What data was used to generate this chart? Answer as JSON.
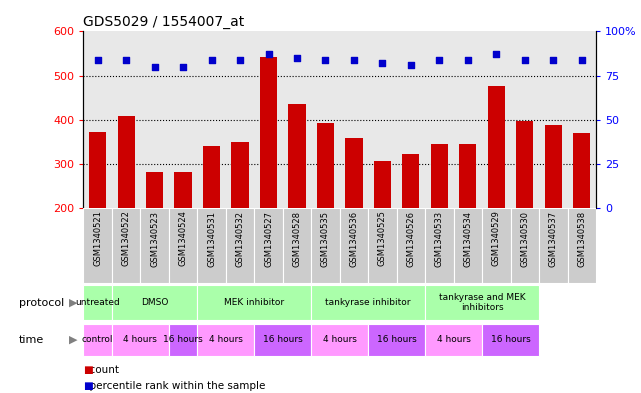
{
  "title": "GDS5029 / 1554007_at",
  "samples": [
    "GSM1340521",
    "GSM1340522",
    "GSM1340523",
    "GSM1340524",
    "GSM1340531",
    "GSM1340532",
    "GSM1340527",
    "GSM1340528",
    "GSM1340535",
    "GSM1340536",
    "GSM1340525",
    "GSM1340526",
    "GSM1340533",
    "GSM1340534",
    "GSM1340529",
    "GSM1340530",
    "GSM1340537",
    "GSM1340538"
  ],
  "counts": [
    372,
    408,
    283,
    283,
    340,
    350,
    543,
    435,
    393,
    358,
    308,
    323,
    345,
    345,
    477,
    397,
    388,
    370
  ],
  "percentile_ranks": [
    84,
    84,
    80,
    80,
    84,
    84,
    87,
    85,
    84,
    84,
    82,
    81,
    84,
    84,
    87,
    84,
    84,
    84
  ],
  "bar_color": "#cc0000",
  "dot_color": "#0000cc",
  "ylim_left": [
    200,
    600
  ],
  "ylim_right": [
    0,
    100
  ],
  "yticks_left": [
    200,
    300,
    400,
    500,
    600
  ],
  "yticks_right": [
    0,
    25,
    50,
    75,
    100
  ],
  "yticklabels_right": [
    "0",
    "25",
    "50",
    "75",
    "100%"
  ],
  "grid_values": [
    300,
    400,
    500
  ],
  "protocol_groups": [
    {
      "label": "untreated",
      "start": 0,
      "end": 1
    },
    {
      "label": "DMSO",
      "start": 1,
      "end": 4
    },
    {
      "label": "MEK inhibitor",
      "start": 4,
      "end": 8
    },
    {
      "label": "tankyrase inhibitor",
      "start": 8,
      "end": 12
    },
    {
      "label": "tankyrase and MEK\ninhibitors",
      "start": 12,
      "end": 16
    }
  ],
  "time_groups": [
    {
      "label": "control",
      "start": 0,
      "end": 1,
      "is16": false
    },
    {
      "label": "4 hours",
      "start": 1,
      "end": 3,
      "is16": false
    },
    {
      "label": "16 hours",
      "start": 3,
      "end": 4,
      "is16": true
    },
    {
      "label": "4 hours",
      "start": 4,
      "end": 6,
      "is16": false
    },
    {
      "label": "16 hours",
      "start": 6,
      "end": 8,
      "is16": true
    },
    {
      "label": "4 hours",
      "start": 8,
      "end": 10,
      "is16": false
    },
    {
      "label": "16 hours",
      "start": 10,
      "end": 12,
      "is16": true
    },
    {
      "label": "4 hours",
      "start": 12,
      "end": 14,
      "is16": false
    },
    {
      "label": "16 hours",
      "start": 14,
      "end": 16,
      "is16": true
    }
  ],
  "color_4hours": "#ff99ff",
  "color_16hours": "#cc66ff",
  "color_protocol": "#aaffaa",
  "color_xticklabel_bg": "#cccccc",
  "legend_count_color": "#cc0000",
  "legend_dot_color": "#0000cc",
  "background_color": "#ffffff",
  "plot_bg_color": "#e8e8e8"
}
